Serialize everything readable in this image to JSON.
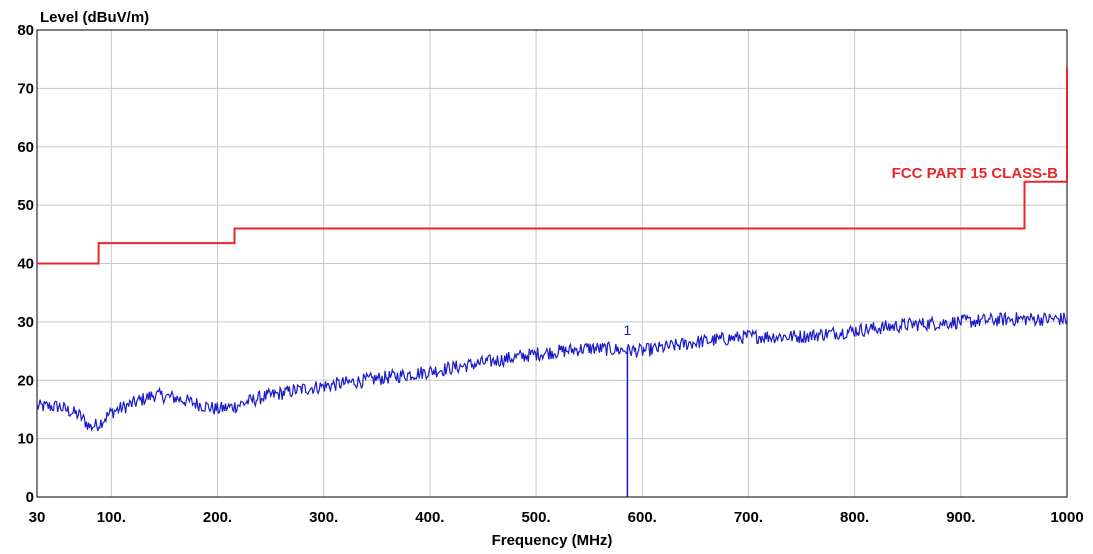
{
  "chart_data": {
    "type": "line",
    "title": "",
    "ylabel": "Level (dBuV/m)",
    "xlabel": "Frequency (MHz)",
    "xlim": [
      30,
      1000
    ],
    "ylim": [
      0,
      80
    ],
    "grid": true,
    "x_ticks": [
      30,
      100,
      200,
      300,
      400,
      500,
      600,
      700,
      800,
      900,
      1000
    ],
    "x_tick_labels": [
      "30",
      "100.",
      "200.",
      "300.",
      "400.",
      "500.",
      "600.",
      "700.",
      "800.",
      "900.",
      "1000"
    ],
    "y_ticks": [
      0,
      10,
      20,
      30,
      40,
      50,
      60,
      70,
      80
    ],
    "y_tick_labels": [
      "0",
      "10",
      "20",
      "30",
      "40",
      "50",
      "60",
      "70",
      "80"
    ],
    "colors": {
      "limit": "#e8262b",
      "measurement": "#1a1ac8",
      "grid": "#c8c8c8",
      "axis": "#000000"
    },
    "series": [
      {
        "name": "FCC PART 15 CLASS-B",
        "style": "step",
        "x": [
          30,
          88,
          88,
          216,
          216,
          960,
          960,
          1000,
          1000
        ],
        "y": [
          40,
          40,
          43.5,
          43.5,
          46,
          46,
          54,
          54,
          73.5
        ]
      },
      {
        "name": "",
        "style": "noisy",
        "x": [
          30,
          50,
          70,
          80,
          88,
          100,
          120,
          140,
          160,
          180,
          200,
          215,
          240,
          280,
          320,
          360,
          400,
          450,
          500,
          550,
          600,
          650,
          700,
          750,
          800,
          850,
          900,
          950,
          1000
        ],
        "y": [
          15.5,
          15.5,
          14,
          12,
          12.5,
          14.5,
          16,
          17.5,
          17,
          16,
          15,
          15.5,
          17,
          18.5,
          19.5,
          20.5,
          21.5,
          23,
          24.5,
          25.5,
          25,
          26.5,
          27.5,
          27.5,
          28.5,
          29.5,
          30,
          30.5,
          30.5
        ]
      }
    ],
    "markers": [
      {
        "label": "1",
        "x": 586,
        "y": 26
      }
    ]
  }
}
